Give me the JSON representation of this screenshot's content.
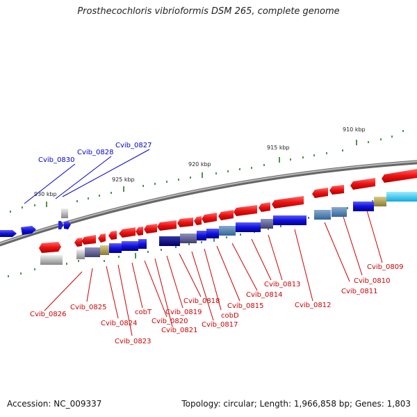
{
  "title": "Prosthecochloris vibrioformis DSM 265, complete genome",
  "footer": {
    "accession": "Accession: NC_009337",
    "topology": "Topology: circular; Length: 1,966,858 bp; Genes: 1,803"
  },
  "scale_labels": [
    "930 kbp",
    "925 kbp",
    "920 kbp",
    "915 kbp",
    "910 kbp"
  ],
  "top_gene_labels": [
    "Cvib_0830",
    "Cvib_0828",
    "Cvib_0827"
  ],
  "bottom_gene_labels": [
    "Cvib_0826",
    "Cvib_0825",
    "Cvib_0824",
    "Cvib_0823",
    "cobT",
    "Cvib_0820",
    "Cvib_0821",
    "Cvib_0819",
    "Cvib_0818",
    "Cvib_0817",
    "cobD",
    "Cvib_0815",
    "Cvib_0814",
    "Cvib_0813",
    "Cvib_0812",
    "Cvib_0811",
    "Cvib_0810",
    "Cvib_0809"
  ],
  "colors": {
    "forward_gene": "#ee1111",
    "reverse_gene": "#1111dd",
    "top_label": "#0000cc",
    "bottom_label": "#cc0000",
    "backbone": "#777777",
    "tick": "#227722"
  }
}
